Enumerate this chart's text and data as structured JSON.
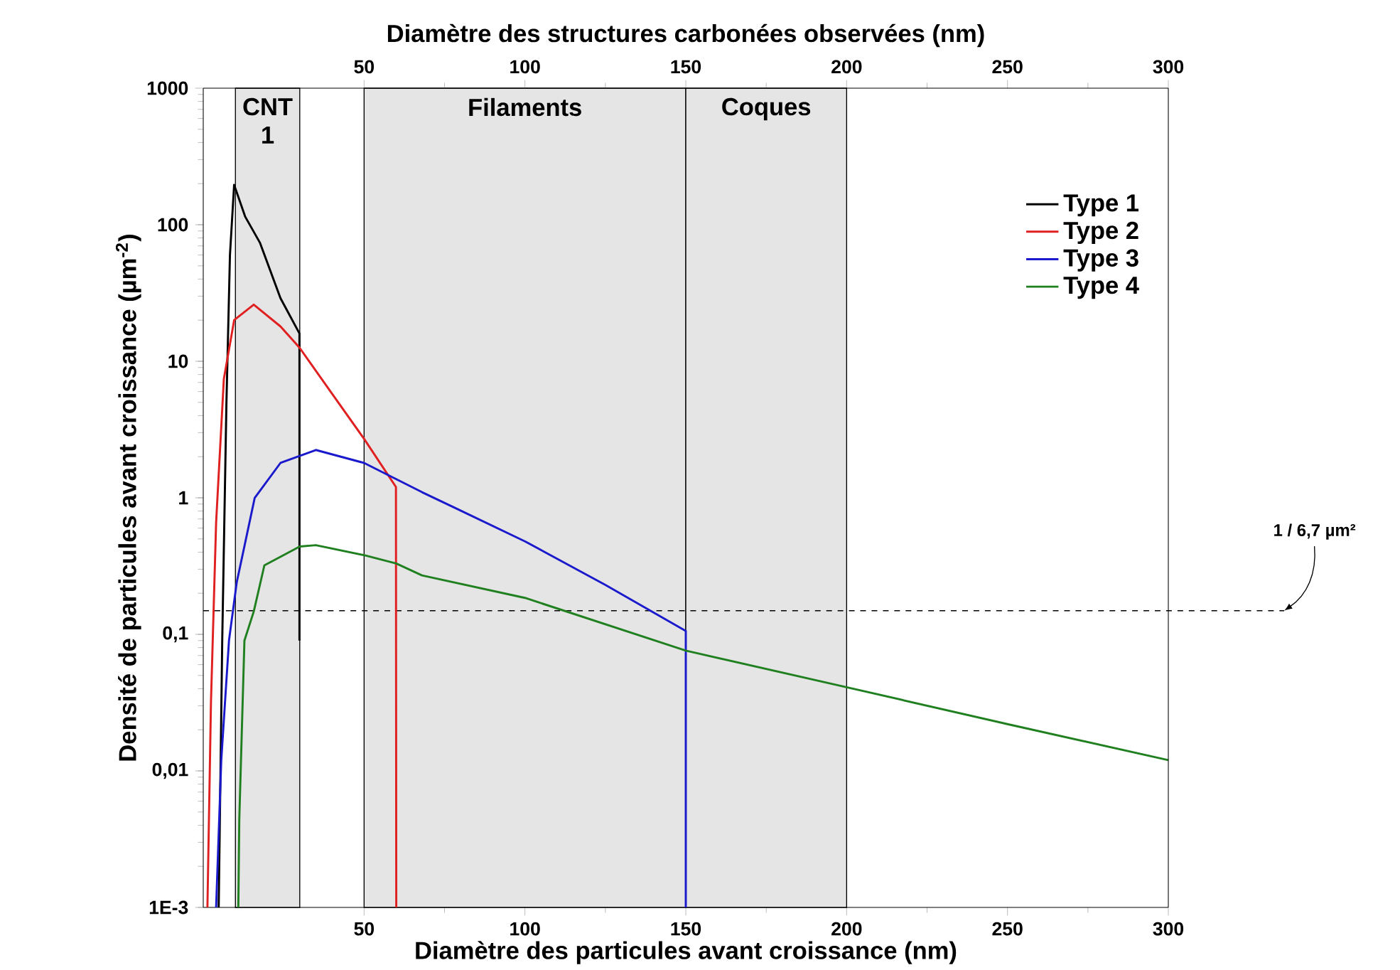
{
  "chart_data": {
    "type": "line",
    "xlabel": "Diamètre des particules avant croissance (nm)",
    "x2label": "Diamètre des structures carbonées observées (nm)",
    "ylabel": "Densité de particules avant croissance (µm$^{-2}$)",
    "log": "y",
    "xlim": [
      0,
      300
    ],
    "xticks": [
      50,
      100,
      150,
      200,
      250,
      300
    ],
    "x2lim": [
      0,
      300
    ],
    "x2ticks": [
      50,
      100,
      150,
      200,
      250,
      300
    ],
    "ylim": [
      0.001,
      1000
    ],
    "yticks": [
      {
        "value": 0.001,
        "label": "1E-3"
      },
      {
        "value": 0.01,
        "label": "0,01"
      },
      {
        "value": 0.1,
        "label": "0,1"
      },
      1,
      10,
      100,
      1000
    ],
    "legend": "top right",
    "marker": "none",
    "line_style": "solid",
    "series": [
      {
        "name": "Type 1",
        "color": "#000000",
        "x": [
          4.8,
          5.9,
          7.2,
          8.3,
          9.6,
          13,
          17.6,
          24,
          29.9,
          29.9
        ],
        "values": [
          0.001,
          0.09,
          4.9,
          60,
          196,
          115,
          74,
          29,
          16,
          0.09
        ]
      },
      {
        "name": "Type 2",
        "color": "#e02020",
        "x": [
          1.3,
          2.4,
          4,
          6.4,
          9.6,
          15.7,
          24,
          29.9,
          40,
          50,
          59.9,
          60
        ],
        "values": [
          0.001,
          0.032,
          0.66,
          7.4,
          20,
          26,
          18,
          12.6,
          5.8,
          2.7,
          1.2,
          0.001
        ]
      },
      {
        "name": "Type 3",
        "color": "#1a1acc",
        "x": [
          4,
          5.6,
          8,
          10.4,
          16,
          24,
          35,
          50,
          68,
          78,
          100,
          125,
          150,
          150
        ],
        "values": [
          0.001,
          0.012,
          0.09,
          0.24,
          1.0,
          1.8,
          2.24,
          1.8,
          1.1,
          0.85,
          0.48,
          0.23,
          0.106,
          0.001
        ]
      },
      {
        "name": "Type 4",
        "color": "#208020",
        "x": [
          10.9,
          11.2,
          12,
          12.8,
          15.7,
          19,
          30,
          35,
          50,
          60,
          68,
          100,
          150,
          200,
          250,
          300
        ],
        "values": [
          0.001,
          0.0044,
          0.02,
          0.09,
          0.147,
          0.32,
          0.44,
          0.45,
          0.38,
          0.33,
          0.27,
          0.185,
          0.076,
          0.041,
          0.022,
          0.012
        ]
      }
    ],
    "bands": [
      {
        "axis": "x",
        "from": 10,
        "to": 30,
        "label": "CNT 1"
      },
      {
        "axis": "x",
        "from": 50,
        "to": 150,
        "label": "Filaments"
      },
      {
        "axis": "x",
        "from": 150,
        "to": 200,
        "label": "Coques"
      }
    ],
    "ref_lines": [
      {
        "axis": "y",
        "value": 0.149,
        "label": "1 / 6,7 µm²",
        "line_style": "dashed",
        "color": "#000000"
      }
    ]
  }
}
